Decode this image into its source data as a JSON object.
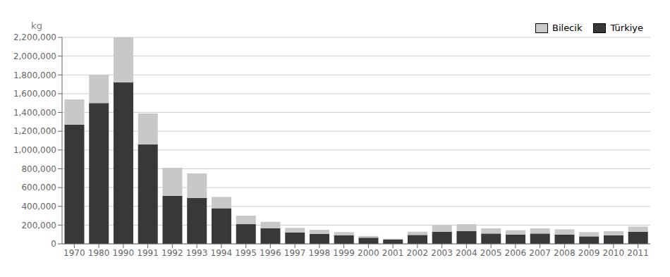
{
  "chart_data": {
    "type": "bar",
    "stacked": true,
    "y_label": "kg",
    "categories": [
      "1970",
      "1980",
      "1990",
      "1991",
      "1992",
      "1993",
      "1994",
      "1995",
      "1996",
      "1997",
      "1998",
      "1999",
      "2000",
      "2001",
      "2002",
      "2003",
      "2004",
      "2005",
      "2006",
      "2007",
      "2008",
      "2009",
      "2010",
      "2011"
    ],
    "series": [
      {
        "name": "Türkiye",
        "color": "#383838",
        "values": [
          1270000,
          1500000,
          1720000,
          1060000,
          510000,
          490000,
          380000,
          210000,
          165000,
          120000,
          105000,
          90000,
          65000,
          45000,
          95000,
          130000,
          135000,
          110000,
          100000,
          110000,
          100000,
          80000,
          90000,
          130000
        ]
      },
      {
        "name": "Bilecik",
        "color": "#c8c8c8",
        "values": [
          270000,
          300000,
          480000,
          330000,
          300000,
          260000,
          120000,
          90000,
          70000,
          50000,
          45000,
          35000,
          18000,
          10000,
          35000,
          70000,
          75000,
          55000,
          45000,
          55000,
          55000,
          45000,
          45000,
          55000
        ]
      }
    ],
    "ylim": [
      0,
      2200000
    ],
    "yticks": [
      0,
      {
        "value": 200000,
        "label": "200,000"
      },
      {
        "value": 400000,
        "label": "400,000"
      },
      {
        "value": 600000,
        "label": "600,000"
      },
      {
        "value": 800000,
        "label": "800,000"
      },
      {
        "value": 1000000,
        "label": "1,000,000"
      },
      {
        "value": 1200000,
        "label": "1,200,000"
      },
      {
        "value": 1400000,
        "label": "1,400,000"
      },
      {
        "value": 1600000,
        "label": "1,600,000"
      },
      {
        "value": 1800000,
        "label": "1,800,000"
      },
      {
        "value": 2000000,
        "label": "2,000,000"
      },
      {
        "value": 2200000,
        "label": "2,200,000"
      }
    ],
    "grid": true,
    "legend": "upper right"
  }
}
